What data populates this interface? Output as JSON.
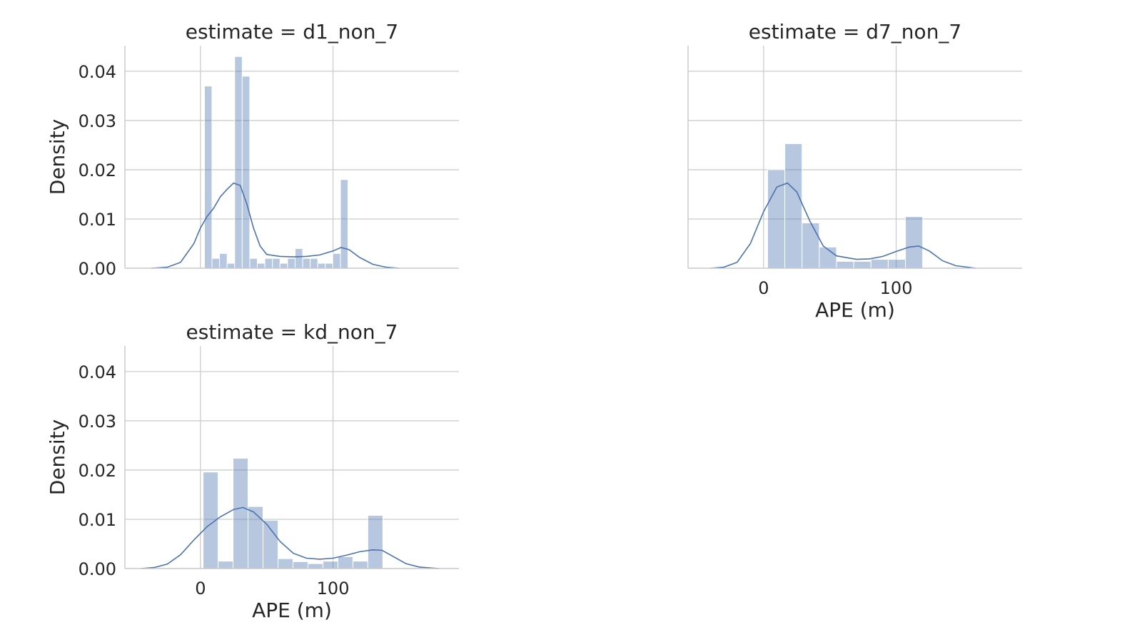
{
  "chart_data": [
    {
      "type": "histogram",
      "title": "estimate = d1_non_7",
      "xlabel": "",
      "ylabel": "Density",
      "xlim": [
        -57,
        195
      ],
      "ylim": [
        0,
        0.0452
      ],
      "xticks": [
        0,
        100
      ],
      "show_xticks": false,
      "show_yticks": true,
      "yticks": [
        {
          "v": 0.0,
          "label": "0.00"
        },
        {
          "v": 0.01,
          "label": "0.01"
        },
        {
          "v": 0.02,
          "label": "0.02"
        },
        {
          "v": 0.03,
          "label": "0.03"
        },
        {
          "v": 0.04,
          "label": "0.04"
        }
      ],
      "grid": true,
      "bins": [
        {
          "x0": 3,
          "x1": 8.7,
          "density": 0.037
        },
        {
          "x0": 8.7,
          "x1": 14.4,
          "density": 0.002
        },
        {
          "x0": 14.4,
          "x1": 20.1,
          "density": 0.003
        },
        {
          "x0": 20.1,
          "x1": 25.8,
          "density": 0.001
        },
        {
          "x0": 25.8,
          "x1": 31.5,
          "density": 0.043
        },
        {
          "x0": 31.5,
          "x1": 37.2,
          "density": 0.039
        },
        {
          "x0": 37.2,
          "x1": 42.9,
          "density": 0.002
        },
        {
          "x0": 42.9,
          "x1": 48.6,
          "density": 0.001
        },
        {
          "x0": 48.6,
          "x1": 54.3,
          "density": 0.002
        },
        {
          "x0": 54.3,
          "x1": 60.0,
          "density": 0.002
        },
        {
          "x0": 60.0,
          "x1": 65.7,
          "density": 0.001
        },
        {
          "x0": 65.7,
          "x1": 71.4,
          "density": 0.002
        },
        {
          "x0": 71.4,
          "x1": 77.1,
          "density": 0.004
        },
        {
          "x0": 77.1,
          "x1": 82.8,
          "density": 0.002
        },
        {
          "x0": 82.8,
          "x1": 88.5,
          "density": 0.002
        },
        {
          "x0": 88.5,
          "x1": 94.2,
          "density": 0.001
        },
        {
          "x0": 94.2,
          "x1": 99.9,
          "density": 0.001
        },
        {
          "x0": 99.9,
          "x1": 105.6,
          "density": 0.003
        },
        {
          "x0": 105.6,
          "x1": 111.3,
          "density": 0.018
        }
      ],
      "kde": [
        [
          -37,
          0.0
        ],
        [
          -25,
          0.0002
        ],
        [
          -15,
          0.0012
        ],
        [
          -5,
          0.005
        ],
        [
          0,
          0.0082
        ],
        [
          5,
          0.0105
        ],
        [
          10,
          0.0122
        ],
        [
          15,
          0.0145
        ],
        [
          20,
          0.016
        ],
        [
          25,
          0.0173
        ],
        [
          30,
          0.0168
        ],
        [
          35,
          0.013
        ],
        [
          40,
          0.0082
        ],
        [
          45,
          0.0045
        ],
        [
          50,
          0.0028
        ],
        [
          60,
          0.0024
        ],
        [
          70,
          0.0023
        ],
        [
          80,
          0.0024
        ],
        [
          90,
          0.0027
        ],
        [
          100,
          0.0035
        ],
        [
          106,
          0.0042
        ],
        [
          112,
          0.0038
        ],
        [
          120,
          0.0022
        ],
        [
          130,
          0.0008
        ],
        [
          140,
          0.0002
        ],
        [
          150,
          0.0
        ]
      ]
    },
    {
      "type": "histogram",
      "title": "estimate = d7_non_7",
      "xlabel": "APE (m)",
      "ylabel": "",
      "xlim": [
        -57,
        195
      ],
      "ylim": [
        0,
        0.0452
      ],
      "xticks": [
        0,
        100
      ],
      "show_xticks": true,
      "show_yticks": false,
      "yticks": [
        {
          "v": 0.0,
          "label": "0.00"
        },
        {
          "v": 0.01,
          "label": "0.01"
        },
        {
          "v": 0.02,
          "label": "0.02"
        },
        {
          "v": 0.03,
          "label": "0.03"
        },
        {
          "v": 0.04,
          "label": "0.04"
        }
      ],
      "grid": true,
      "bins": [
        {
          "x0": 3,
          "x1": 16,
          "density": 0.02
        },
        {
          "x0": 16,
          "x1": 29,
          "density": 0.0253
        },
        {
          "x0": 29,
          "x1": 42,
          "density": 0.0092
        },
        {
          "x0": 42,
          "x1": 55,
          "density": 0.0043
        },
        {
          "x0": 55,
          "x1": 68,
          "density": 0.0014
        },
        {
          "x0": 68,
          "x1": 81,
          "density": 0.0014
        },
        {
          "x0": 81,
          "x1": 94,
          "density": 0.0018
        },
        {
          "x0": 94,
          "x1": 107,
          "density": 0.0018
        },
        {
          "x0": 107,
          "x1": 120,
          "density": 0.0105
        }
      ],
      "kde": [
        [
          -40,
          0.0
        ],
        [
          -30,
          0.0002
        ],
        [
          -20,
          0.0012
        ],
        [
          -10,
          0.005
        ],
        [
          0,
          0.0115
        ],
        [
          10,
          0.0165
        ],
        [
          18,
          0.0173
        ],
        [
          25,
          0.0155
        ],
        [
          35,
          0.0095
        ],
        [
          45,
          0.0045
        ],
        [
          55,
          0.0025
        ],
        [
          70,
          0.0018
        ],
        [
          80,
          0.0019
        ],
        [
          90,
          0.0024
        ],
        [
          100,
          0.0034
        ],
        [
          110,
          0.0043
        ],
        [
          117,
          0.0045
        ],
        [
          125,
          0.0035
        ],
        [
          135,
          0.0015
        ],
        [
          145,
          0.0005
        ],
        [
          160,
          0.0
        ]
      ]
    },
    {
      "type": "histogram",
      "title": "estimate = kd_non_7",
      "xlabel": "APE (m)",
      "ylabel": "Density",
      "xlim": [
        -57,
        195
      ],
      "ylim": [
        0,
        0.0452
      ],
      "xticks": [
        0,
        100
      ],
      "show_xticks": true,
      "show_yticks": true,
      "yticks": [
        {
          "v": 0.0,
          "label": "0.00"
        },
        {
          "v": 0.01,
          "label": "0.01"
        },
        {
          "v": 0.02,
          "label": "0.02"
        },
        {
          "v": 0.03,
          "label": "0.03"
        },
        {
          "v": 0.04,
          "label": "0.04"
        }
      ],
      "grid": true,
      "bins": [
        {
          "x0": 2,
          "x1": 13.3,
          "density": 0.0196
        },
        {
          "x0": 13.3,
          "x1": 24.6,
          "density": 0.0015
        },
        {
          "x0": 24.6,
          "x1": 35.9,
          "density": 0.0224
        },
        {
          "x0": 35.9,
          "x1": 47.2,
          "density": 0.0126
        },
        {
          "x0": 47.2,
          "x1": 58.5,
          "density": 0.0098
        },
        {
          "x0": 58.5,
          "x1": 69.8,
          "density": 0.002
        },
        {
          "x0": 69.8,
          "x1": 81.1,
          "density": 0.0014
        },
        {
          "x0": 81.1,
          "x1": 92.4,
          "density": 0.001
        },
        {
          "x0": 92.4,
          "x1": 103.7,
          "density": 0.0015
        },
        {
          "x0": 103.7,
          "x1": 115.0,
          "density": 0.0024
        },
        {
          "x0": 115.0,
          "x1": 126.3,
          "density": 0.0015
        },
        {
          "x0": 126.3,
          "x1": 137.6,
          "density": 0.0108
        }
      ],
      "kde": [
        [
          -45,
          0.0
        ],
        [
          -35,
          0.0002
        ],
        [
          -25,
          0.0009
        ],
        [
          -15,
          0.0028
        ],
        [
          -5,
          0.0058
        ],
        [
          5,
          0.0085
        ],
        [
          15,
          0.0105
        ],
        [
          25,
          0.012
        ],
        [
          32,
          0.0124
        ],
        [
          40,
          0.0115
        ],
        [
          50,
          0.009
        ],
        [
          60,
          0.0055
        ],
        [
          70,
          0.0031
        ],
        [
          80,
          0.0021
        ],
        [
          90,
          0.0019
        ],
        [
          100,
          0.0021
        ],
        [
          110,
          0.0027
        ],
        [
          120,
          0.0034
        ],
        [
          130,
          0.0038
        ],
        [
          137,
          0.0037
        ],
        [
          145,
          0.0025
        ],
        [
          155,
          0.001
        ],
        [
          165,
          0.0003
        ],
        [
          180,
          0.0
        ]
      ]
    }
  ]
}
